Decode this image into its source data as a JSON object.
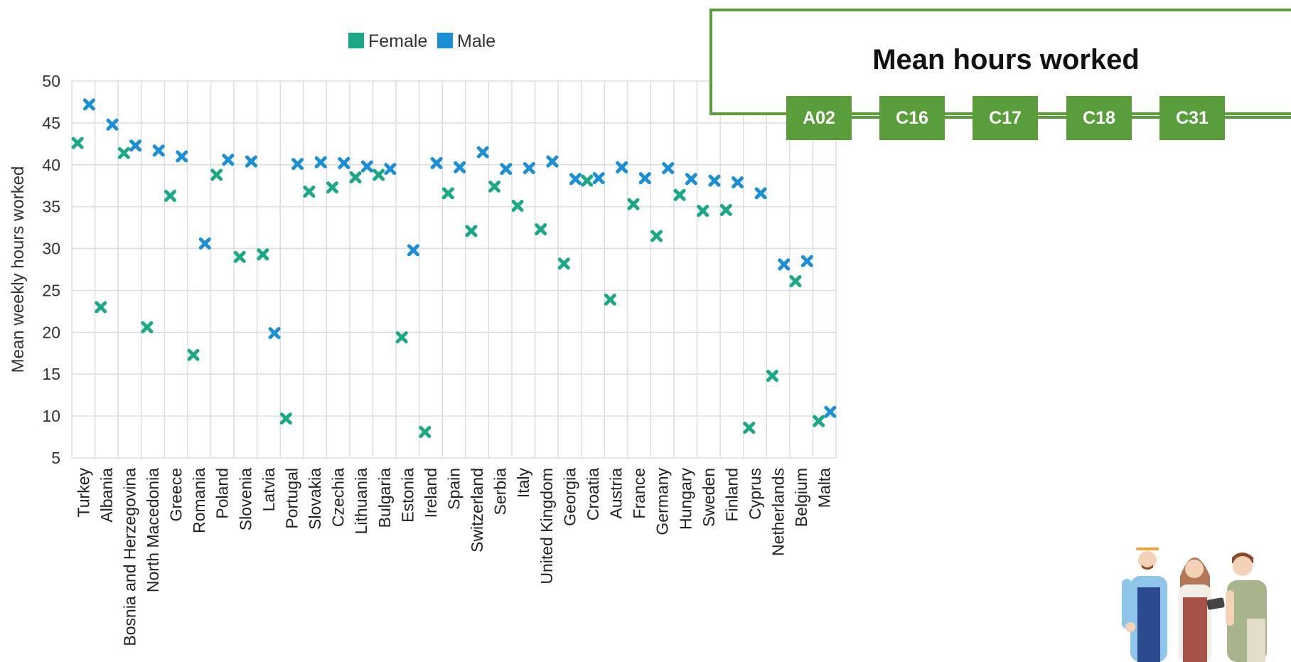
{
  "panel": {
    "title": "Mean hours worked",
    "codes": [
      "A02",
      "C16",
      "C17",
      "C18",
      "C31"
    ]
  },
  "colors": {
    "female": "#1aa887",
    "male": "#1b8fd6",
    "accent": "#5a9e3c"
  },
  "illustration": "workers-illustration",
  "chart_data": {
    "type": "scatter",
    "title": "",
    "xlabel": "",
    "ylabel": "Mean weekly hours worked",
    "ylim": [
      5,
      50
    ],
    "yticks": [
      5,
      10,
      15,
      20,
      25,
      30,
      35,
      40,
      45,
      50
    ],
    "grid": true,
    "legend_position": "top-center",
    "marker": "x",
    "categories": [
      "Turkey",
      "Albania",
      "Bosnia and Herzegovina",
      "North Macedonia",
      "Greece",
      "Romania",
      "Poland",
      "Slovenia",
      "Latvia",
      "Portugal",
      "Slovakia",
      "Czechia",
      "Lithuania",
      "Bulgaria",
      "Estonia",
      "Ireland",
      "Spain",
      "Switzerland",
      "Serbia",
      "Italy",
      "United Kingdom",
      "Georgia",
      "Croatia",
      "Austria",
      "France",
      "Germany",
      "Hungary",
      "Sweden",
      "Finland",
      "Cyprus",
      "Netherlands",
      "Belgium",
      "Malta"
    ],
    "series": [
      {
        "name": "Female",
        "color": "#1aa887",
        "values": [
          42.6,
          23.0,
          41.4,
          20.6,
          36.3,
          17.3,
          38.8,
          29.0,
          29.3,
          9.7,
          36.8,
          37.3,
          38.5,
          38.8,
          19.4,
          8.1,
          36.6,
          32.1,
          37.4,
          35.1,
          32.3,
          28.2,
          38.1,
          23.9,
          35.3,
          31.5,
          36.4,
          34.5,
          34.6,
          8.6,
          14.8,
          26.1,
          9.4
        ]
      },
      {
        "name": "Male",
        "color": "#1b8fd6",
        "values": [
          47.2,
          44.8,
          42.3,
          41.7,
          41.0,
          30.6,
          40.6,
          40.4,
          19.9,
          40.1,
          40.3,
          40.2,
          39.8,
          39.5,
          29.8,
          40.2,
          39.7,
          41.5,
          39.5,
          39.6,
          40.4,
          38.3,
          38.4,
          39.7,
          38.4,
          39.6,
          38.3,
          38.1,
          37.9,
          36.6,
          28.1,
          28.5,
          10.5
        ]
      }
    ]
  }
}
